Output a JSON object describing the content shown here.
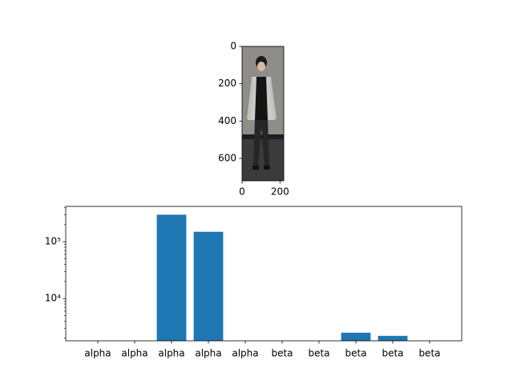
{
  "chart_data": [
    {
      "type": "image",
      "xlim": [
        0,
        220
      ],
      "ylim": [
        720,
        0
      ],
      "xticks": [
        0,
        200
      ],
      "yticks": [
        0,
        200,
        400,
        600
      ]
    },
    {
      "type": "bar",
      "categories": [
        "alpha",
        "alpha",
        "alpha",
        "alpha",
        "alpha",
        "beta",
        "beta",
        "beta",
        "beta",
        "beta"
      ],
      "values": [
        0,
        0,
        300000,
        150000,
        0,
        0,
        0,
        2500,
        2200,
        0
      ],
      "color": "#1f77b4",
      "log_scale": true,
      "ylim": [
        1800,
        420000
      ],
      "yticks": [
        {
          "value": 10000,
          "label": "10⁴"
        },
        {
          "value": 100000,
          "label": "10⁵"
        }
      ]
    }
  ]
}
